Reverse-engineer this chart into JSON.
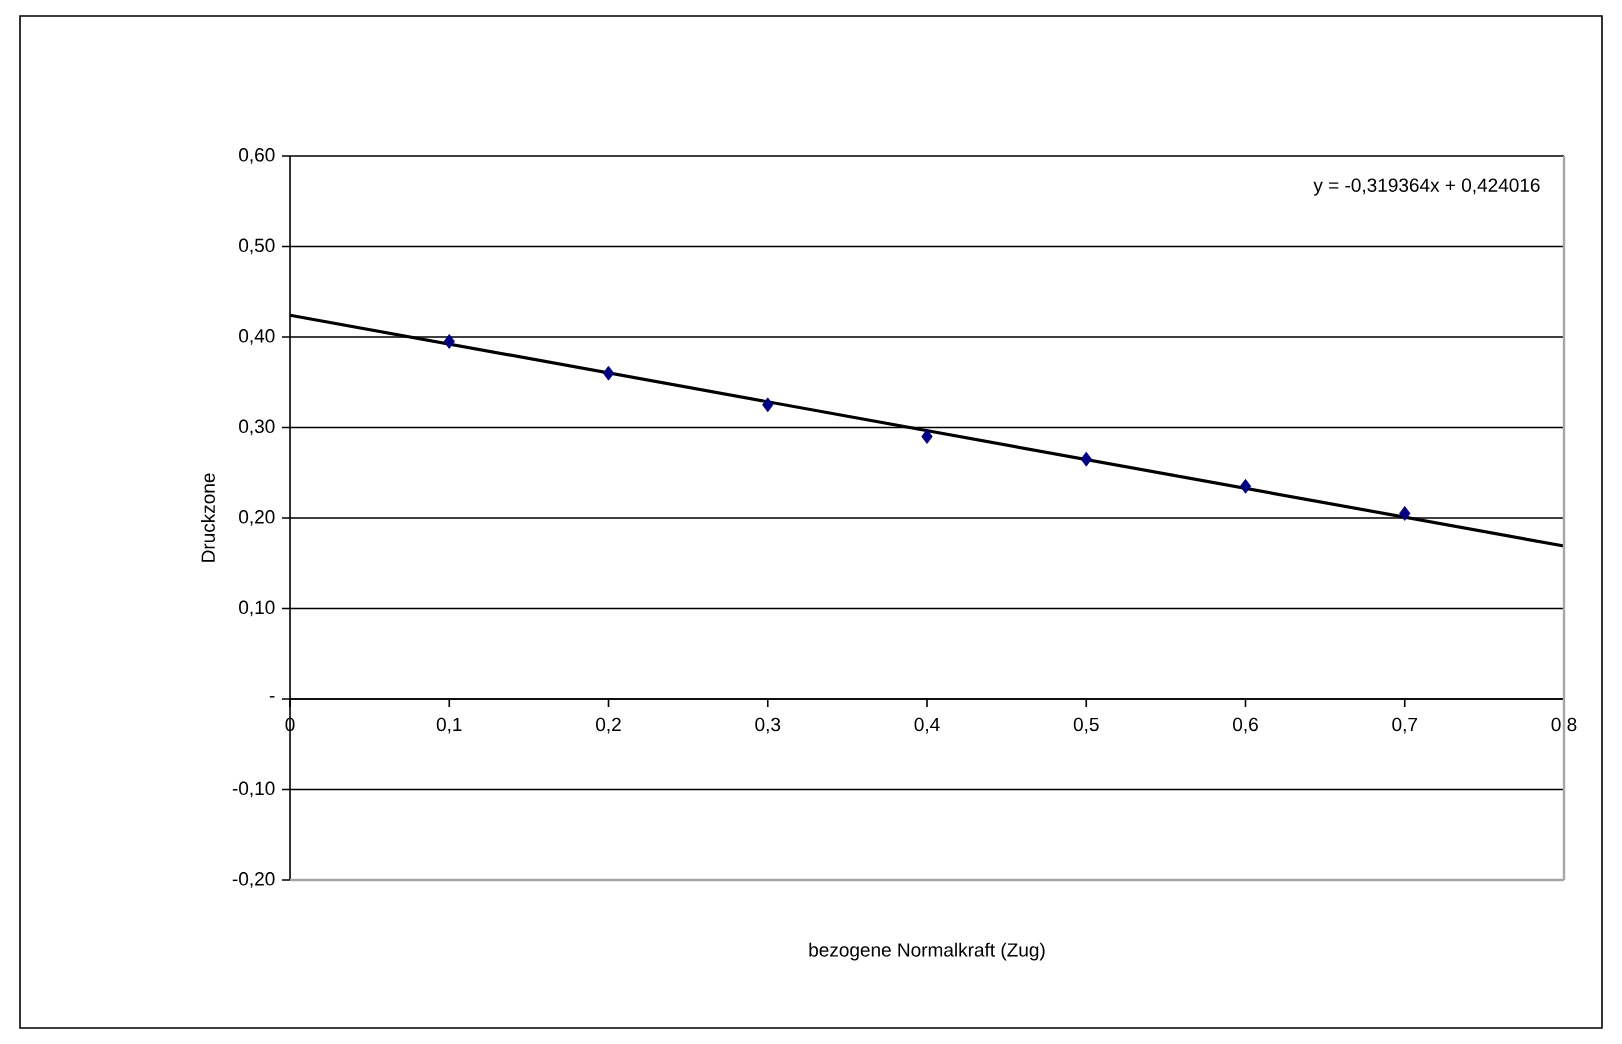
{
  "chart_data": {
    "type": "scatter",
    "xlabel": "bezogene Normalkraft (Zug)",
    "ylabel": "Druckzone",
    "annotations": [
      "y = -0,319364x + 0,424016"
    ],
    "xlim": [
      0,
      0.8
    ],
    "ylim": [
      -0.2,
      0.6
    ],
    "xticks": [
      0,
      {
        "value": 0.1,
        "label": "0,1"
      },
      {
        "value": 0.2,
        "label": "0,2"
      },
      {
        "value": 0.3,
        "label": "0,3"
      },
      {
        "value": 0.4,
        "label": "0,4"
      },
      {
        "value": 0.5,
        "label": "0,5"
      },
      {
        "value": 0.6,
        "label": "0,6"
      },
      {
        "value": 0.7,
        "label": "0,7"
      },
      {
        "value": 0.8,
        "label": "0,8"
      }
    ],
    "yticks": [
      {
        "value": -0.2,
        "label": "-0,20"
      },
      {
        "value": -0.1,
        "label": "-0,10"
      },
      {
        "value": 0,
        "label": "-"
      },
      {
        "value": 0.1,
        "label": "0,10"
      },
      {
        "value": 0.2,
        "label": "0,20"
      },
      {
        "value": 0.3,
        "label": "0,30"
      },
      {
        "value": 0.4,
        "label": "0,40"
      },
      {
        "value": 0.5,
        "label": "0,50"
      },
      {
        "value": 0.6,
        "label": "0,60"
      }
    ],
    "grid": "y",
    "marker": "diamond",
    "series": [
      {
        "color": "#000080",
        "x": [
          0.1,
          0.2,
          0.3,
          0.4,
          0.5,
          0.6,
          0.7
        ],
        "values": [
          0.395,
          0.36,
          0.325,
          0.29,
          0.265,
          0.235,
          0.205
        ]
      },
      {
        "type": "line",
        "marker": "none",
        "color": "#000000",
        "x": [
          0,
          0.8
        ],
        "values": [
          0.424,
          0.169
        ]
      }
    ]
  }
}
